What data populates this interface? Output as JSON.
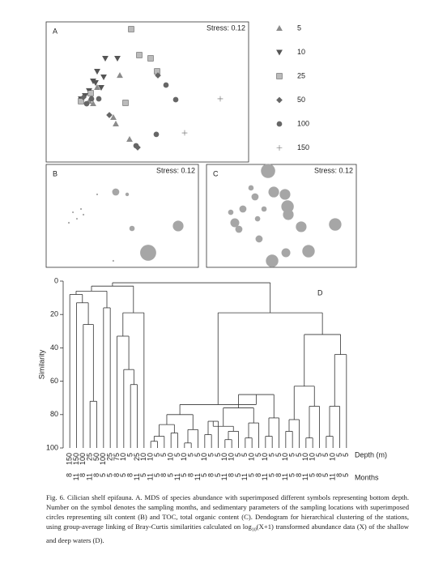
{
  "chart_data": [
    {
      "type": "scatter",
      "label": "A",
      "stress_label": "Stress: 0.12",
      "xlim": [
        0,
        100
      ],
      "ylim": [
        0,
        100
      ],
      "legend": "right",
      "series": [
        {
          "name": "5",
          "marker": "triangle-up",
          "color": "#8c8c8c",
          "x": [
            36.4,
            23.2,
            21.2,
            33.2,
            34.4,
            41.2,
            25.2
          ],
          "y": [
            61.8,
            41.6,
            43.4,
            31.8,
            27.2,
            16.2,
            53.2
          ]
        },
        {
          "name": "10",
          "marker": "triangle-down",
          "color": "#555555",
          "x": [
            29.2,
            35.2,
            25.2,
            28.4,
            23.2,
            27.2,
            19.2,
            21.2,
            17.2,
            24.4
          ],
          "y": [
            74.0,
            74.0,
            64.7,
            60.7,
            57.8,
            53.2,
            47.4,
            50.9,
            45.1,
            56.6
          ]
        },
        {
          "name": "25",
          "marker": "square",
          "color": "#8c8c8c",
          "x": [
            42.0,
            46.0,
            51.6,
            54.8,
            39.2,
            22.0,
            17.2
          ],
          "y": [
            94.8,
            76.3,
            74.0,
            64.7,
            42.2,
            49.1,
            43.4
          ]
        },
        {
          "name": "50",
          "marker": "diamond",
          "color": "#666666",
          "x": [
            55.2,
            45.2,
            31.2,
            18.4
          ],
          "y": [
            61.8,
            10.4,
            33.5,
            46.2
          ]
        },
        {
          "name": "100",
          "marker": "circle",
          "color": "#666666",
          "x": [
            59.2,
            64.0,
            54.4,
            44.4,
            26.0,
            20.0,
            22.4
          ],
          "y": [
            54.9,
            44.5,
            19.7,
            11.6,
            45.1,
            41.6,
            45.1
          ]
        },
        {
          "name": "150",
          "marker": "plus",
          "color": "#666666",
          "x": [
            86.0,
            68.4
          ],
          "y": [
            45.1,
            20.8
          ]
        }
      ]
    },
    {
      "type": "bubble",
      "label": "B",
      "stress_label": "Stress: 0.12",
      "xlim": [
        0,
        100
      ],
      "ylim": [
        0,
        100
      ],
      "color": "#a6a6a6",
      "x": [
        45.7,
        53.2,
        86.7,
        67.0,
        56.4,
        44.1,
        17.6,
        20.2,
        14.9,
        22.9,
        33.5,
        24.5
      ],
      "y": [
        73.2,
        70.9,
        40.2,
        14.2,
        37.8,
        6.3,
        53.5,
        47.2,
        43.3,
        56.7,
        70.9,
        51.2
      ],
      "size": [
        4,
        2,
        6,
        9,
        3,
        1,
        1,
        1,
        1,
        1,
        1,
        1
      ]
    },
    {
      "type": "bubble",
      "label": "C",
      "stress_label": "Stress: 0.12",
      "xlim": [
        0,
        100
      ],
      "ylim": [
        0,
        100
      ],
      "color": "#a6a6a6",
      "x": [
        41.1,
        44.9,
        52.4,
        54.1,
        54.6,
        29.7,
        32.4,
        24.3,
        18.9,
        21.6,
        34.1,
        35.1,
        63.2,
        85.9,
        68.1,
        53.0,
        43.8,
        16.2,
        38.4
      ],
      "y": [
        93.7,
        73.2,
        70.9,
        59.1,
        51.2,
        77.2,
        68.5,
        56.7,
        43.3,
        37.0,
        47.2,
        27.6,
        39.4,
        41.7,
        15.7,
        14.2,
        6.3,
        53.5,
        56.7
      ],
      "size": [
        8,
        6,
        6,
        7,
        6,
        3,
        4,
        4,
        5,
        4,
        3,
        4,
        6,
        7,
        7,
        5,
        7,
        3,
        3
      ]
    },
    {
      "type": "dendrogram",
      "label": "D",
      "ylabel": "Similarity",
      "x_label": "Depth (m)",
      "x2_label": "Months",
      "ylim": [
        100,
        0
      ],
      "yticks": [
        0,
        20,
        40,
        60,
        80,
        100
      ],
      "color": "#333333",
      "depth": [
        150,
        150,
        100,
        25,
        50,
        100,
        25,
        75,
        10,
        5,
        25,
        10,
        10,
        5,
        5,
        10,
        5,
        10,
        5,
        5,
        10,
        5,
        5,
        10,
        10,
        5,
        5,
        10,
        5,
        10,
        5,
        5,
        10,
        5,
        5,
        10,
        10,
        5,
        5,
        10,
        5,
        5
      ],
      "months": [
        8,
        11,
        8,
        11,
        8,
        5,
        5,
        8,
        5,
        8,
        11,
        5,
        11,
        5,
        8,
        5,
        11,
        5,
        8,
        11,
        5,
        8,
        5,
        11,
        8,
        5,
        11,
        5,
        8,
        11,
        5,
        8,
        11,
        5,
        8,
        11,
        5,
        8,
        5,
        11,
        8,
        5
      ],
      "merges": [
        [
          3,
          4,
          72
        ],
        [
          2,
          42,
          26
        ],
        [
          1,
          43,
          13
        ],
        [
          0,
          44,
          8
        ],
        [
          5,
          6,
          16
        ],
        [
          45,
          46,
          6
        ],
        [
          9,
          10,
          62
        ],
        [
          8,
          48,
          53
        ],
        [
          7,
          49,
          33
        ],
        [
          50,
          11,
          19
        ],
        [
          47,
          51,
          3
        ],
        [
          12,
          13,
          96
        ],
        [
          14,
          53,
          93
        ],
        [
          15,
          16,
          91
        ],
        [
          54,
          55,
          86
        ],
        [
          17,
          18,
          97
        ],
        [
          57,
          19,
          89
        ],
        [
          56,
          58,
          80
        ],
        [
          20,
          21,
          92
        ],
        [
          60,
          22,
          84
        ],
        [
          23,
          24,
          95
        ],
        [
          62,
          25,
          90
        ],
        [
          61,
          63,
          87
        ],
        [
          26,
          27,
          94
        ],
        [
          65,
          28,
          85
        ],
        [
          64,
          66,
          76
        ],
        [
          29,
          30,
          93
        ],
        [
          68,
          31,
          82
        ],
        [
          67,
          69,
          68
        ],
        [
          59,
          70,
          74
        ],
        [
          32,
          33,
          90
        ],
        [
          72,
          34,
          83
        ],
        [
          35,
          36,
          94
        ],
        [
          74,
          37,
          75
        ],
        [
          73,
          75,
          63
        ],
        [
          38,
          39,
          93
        ],
        [
          77,
          40,
          75
        ],
        [
          78,
          41,
          44
        ],
        [
          76,
          79,
          32
        ],
        [
          71,
          80,
          19
        ],
        [
          52,
          81,
          1
        ]
      ]
    }
  ],
  "caption": {
    "before": "Fig. 6. Cilician shelf epifauna. A. MDS of species abundance with superimposed different symbols representing bottom depth. Number on the symbol denotes the sampling months, and sedimentary parameters of the sampling locations with superimposed circles representing silt content (B) and TOC, total organic content (C). Dendogram for hierarchical clustering of the stations, using group-average linking of Bray-Curtis similarities calculated on log",
    "subscript": "10",
    "after": "(X+1) transformed abundance data (X) of the shallow and deep waters (D)."
  }
}
